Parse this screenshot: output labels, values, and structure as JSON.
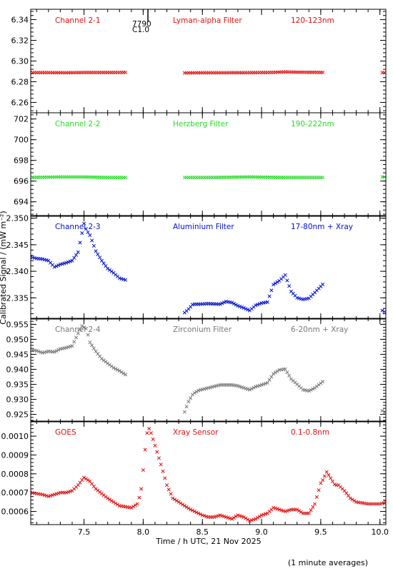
{
  "chart_data": {
    "type": "scatter",
    "x_label": "Time / h UTC, 21 Nov 2025",
    "y_label": "Calibrated Signal / (mW m⁻²)",
    "x_range": [
      7.05,
      10.05
    ],
    "x_ticks": [
      "7.5",
      "8.0",
      "8.5",
      "9.0",
      "9.5",
      "10.0"
    ],
    "footnote": "(1 minute averages)",
    "marker": "x",
    "panels": [
      {
        "channel": "Channel 2-1",
        "filter": "Lyman-alpha Filter",
        "band": "120-123nm",
        "color": "#dd1111",
        "ylim": [
          6.25,
          6.35
        ],
        "yticks": [
          "6.26",
          "6.28",
          "6.30",
          "6.32",
          "6.34"
        ],
        "event": {
          "x": 8.04,
          "labels": [
            "7790",
            "C1.0"
          ]
        },
        "segments": [
          {
            "x": [
              7.05,
              7.2,
              7.35,
              7.5,
              7.65,
              7.86
            ],
            "y": [
              6.2888,
              6.2888,
              6.2887,
              6.2889,
              6.2889,
              6.289
            ]
          },
          {
            "x": [
              8.35,
              8.5,
              8.7,
              8.9,
              9.1,
              9.2,
              9.3,
              9.52
            ],
            "y": [
              6.2885,
              6.2887,
              6.2887,
              6.2888,
              6.289,
              6.2895,
              6.2892,
              6.289
            ]
          },
          {
            "x": [
              10.02,
              10.05
            ],
            "y": [
              6.2888,
              6.2888
            ]
          }
        ]
      },
      {
        "channel": "Channel 2-2",
        "filter": "Herzberg Filter",
        "band": "190-222nm",
        "color": "#22dd22",
        "ylim": [
          692.6,
          702.6
        ],
        "yticks": [
          "694",
          "696",
          "698",
          "700",
          "702"
        ],
        "segments": [
          {
            "x": [
              7.05,
              7.3,
              7.5,
              7.7,
              7.86
            ],
            "y": [
              696.35,
              696.4,
              696.4,
              696.35,
              696.35
            ]
          },
          {
            "x": [
              8.35,
              8.6,
              8.9,
              9.2,
              9.52
            ],
            "y": [
              696.35,
              696.35,
              696.4,
              696.35,
              696.35
            ]
          },
          {
            "x": [
              10.02,
              10.05
            ],
            "y": [
              696.4,
              696.4
            ]
          }
        ]
      },
      {
        "channel": "Channel 2-3",
        "filter": "Aluminium Filter",
        "band": "17-80nm + Xray",
        "color": "#0011cc",
        "ylim": [
          2.331,
          2.3505
        ],
        "yticks": [
          "2.335",
          "2.340",
          "2.345",
          "2.350"
        ],
        "segments": [
          {
            "x": [
              7.05,
              7.1,
              7.15,
              7.2,
              7.25,
              7.3,
              7.35,
              7.4,
              7.45,
              7.5,
              7.52,
              7.55,
              7.6,
              7.65,
              7.7,
              7.75,
              7.8,
              7.86
            ],
            "y": [
              2.3427,
              2.3424,
              2.3423,
              2.342,
              2.3408,
              2.3413,
              2.3416,
              2.342,
              2.3436,
              2.349,
              2.3478,
              2.3468,
              2.3438,
              2.342,
              2.3405,
              2.3397,
              2.3387,
              2.3383
            ]
          },
          {
            "x": [
              8.35,
              8.38,
              8.42,
              8.47,
              8.55,
              8.65,
              8.7,
              8.75,
              8.8,
              8.85,
              8.9,
              8.95,
              9.0,
              9.05,
              9.1,
              9.15,
              9.2,
              9.25,
              9.3,
              9.35,
              9.4,
              9.45,
              9.52
            ],
            "y": [
              2.3322,
              2.3328,
              2.3338,
              2.3338,
              2.3339,
              2.3338,
              2.3343,
              2.3341,
              2.3335,
              2.3331,
              2.3326,
              2.3336,
              2.334,
              2.3342,
              2.3375,
              2.3382,
              2.3393,
              2.3362,
              2.335,
              2.3347,
              2.3349,
              2.336,
              2.3376
            ]
          },
          {
            "x": [
              10.02,
              10.05
            ],
            "y": [
              2.3326,
              2.3322
            ]
          }
        ]
      },
      {
        "channel": "Channel 2-4",
        "filter": "Zirconium Filter",
        "band": "6-20nm + Xray",
        "color": "#777777",
        "ylim": [
          0.9225,
          0.957
        ],
        "yticks": [
          "0.925",
          "0.930",
          "0.935",
          "0.940",
          "0.945",
          "0.950",
          "0.955"
        ],
        "segments": [
          {
            "x": [
              7.05,
              7.1,
              7.15,
              7.2,
              7.25,
              7.3,
              7.35,
              7.4,
              7.45,
              7.48,
              7.52,
              7.55,
              7.6,
              7.65,
              7.7,
              7.75,
              7.8,
              7.86
            ],
            "y": [
              0.9465,
              0.9462,
              0.9455,
              0.946,
              0.9458,
              0.9468,
              0.9472,
              0.9478,
              0.952,
              0.9545,
              0.9535,
              0.949,
              0.946,
              0.9435,
              0.942,
              0.9405,
              0.9395,
              0.938
            ]
          },
          {
            "x": [
              8.35,
              8.38,
              8.42,
              8.47,
              8.55,
              8.65,
              8.75,
              8.8,
              8.85,
              8.9,
              8.95,
              9.0,
              9.05,
              9.1,
              9.15,
              9.2,
              9.25,
              9.3,
              9.35,
              9.4,
              9.45,
              9.52
            ],
            "y": [
              0.9258,
              0.929,
              0.9318,
              0.933,
              0.9338,
              0.9348,
              0.9348,
              0.9345,
              0.9338,
              0.9332,
              0.9342,
              0.9348,
              0.9355,
              0.9385,
              0.9398,
              0.9401,
              0.9368,
              0.935,
              0.9332,
              0.9328,
              0.9338,
              0.936
            ]
          },
          {
            "x": [
              10.02,
              10.05
            ],
            "y": [
              0.9262,
              0.925
            ]
          }
        ]
      },
      {
        "channel": "GOES",
        "filter": "Xray Sensor",
        "band": "0.1-0.8nm",
        "color": "#dd1111",
        "ylim": [
          0.00053,
          0.00108
        ],
        "yticks": [
          "0.0006",
          "0.0007",
          "0.0008",
          "0.0009",
          "0.0010"
        ],
        "segments": [
          {
            "x": [
              7.05,
              7.15,
              7.2,
              7.25,
              7.3,
              7.35,
              7.4,
              7.45,
              7.5,
              7.55,
              7.6,
              7.7,
              7.8,
              7.9,
              7.95,
              7.98,
              8.0,
              8.02,
              8.04,
              8.06,
              8.1,
              8.15,
              8.2,
              8.25,
              8.3,
              8.4,
              8.5,
              8.55,
              8.6,
              8.65,
              8.7,
              8.75,
              8.8,
              8.85,
              8.9,
              8.95,
              9.0,
              9.05,
              9.1,
              9.15,
              9.2,
              9.25,
              9.3,
              9.35,
              9.4,
              9.45,
              9.5,
              9.52,
              9.55,
              9.58,
              9.62,
              9.65,
              9.7,
              9.75,
              9.8,
              9.9,
              10.0,
              10.05
            ],
            "y": [
              0.0007,
              0.00069,
              0.00068,
              0.00069,
              0.0007,
              0.0007,
              0.00071,
              0.00074,
              0.00078,
              0.00076,
              0.00072,
              0.00067,
              0.00063,
              0.00062,
              0.00064,
              0.0007,
              0.00082,
              0.00095,
              0.00105,
              0.00103,
              0.00095,
              0.00085,
              0.00074,
              0.00067,
              0.00065,
              0.00061,
              0.00058,
              0.00057,
              0.00057,
              0.00058,
              0.00057,
              0.00056,
              0.00058,
              0.00057,
              0.00055,
              0.00056,
              0.00058,
              0.00059,
              0.00062,
              0.00061,
              0.0006,
              0.00061,
              0.00061,
              0.00059,
              0.00059,
              0.00064,
              0.00075,
              0.00077,
              0.00081,
              0.00078,
              0.00074,
              0.00074,
              0.00071,
              0.00067,
              0.00065,
              0.00064,
              0.00064,
              0.00065
            ]
          }
        ]
      }
    ]
  }
}
